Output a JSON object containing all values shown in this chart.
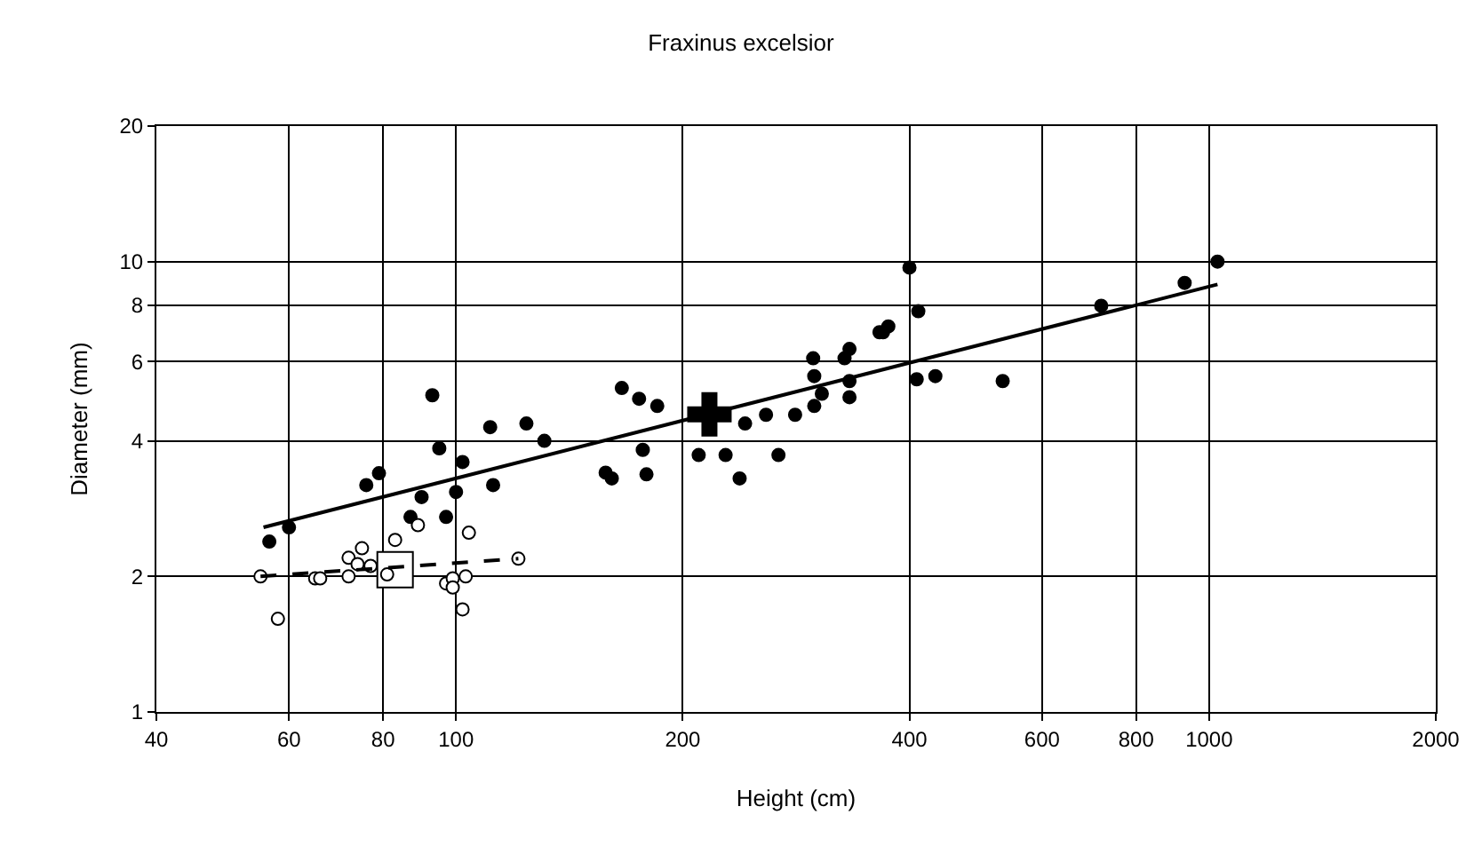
{
  "chart_data": {
    "type": "scatter",
    "title": "Fraxinus excelsior",
    "xlabel": "Height (cm)",
    "ylabel": "Diameter (mm)",
    "log": "xy",
    "grid": true,
    "legend": false,
    "xlim": [
      40,
      2000
    ],
    "xticks": [
      40,
      60,
      80,
      100,
      200,
      400,
      600,
      800,
      1000,
      2000
    ],
    "ylim": [
      1,
      20
    ],
    "yticks": [
      1,
      2,
      4,
      6,
      8,
      10,
      20
    ],
    "series": [
      {
        "marker": "cross",
        "color": "#000000",
        "x": [
          217
        ],
        "values": [
          4.58
        ]
      },
      {
        "marker": "square",
        "color": "#ffffff",
        "x": [
          83
        ],
        "values": [
          2.07
        ]
      },
      {
        "marker": "circle",
        "color": "#000000",
        "x": [
          93,
          111,
          124,
          131,
          95,
          102,
          112,
          79,
          76,
          90,
          100,
          87,
          97,
          60,
          56.5,
          166,
          175,
          185,
          177,
          158,
          161,
          179,
          210,
          228,
          238,
          242,
          258,
          268,
          282,
          298,
          299,
          306,
          299,
          328,
          333,
          333,
          333,
          365,
          400,
          411,
          369,
          375,
          409,
          433,
          532,
          719,
          928,
          1026
        ],
        "values": [
          5.05,
          4.29,
          4.37,
          4.0,
          3.85,
          3.59,
          3.19,
          3.39,
          3.19,
          3.0,
          3.08,
          2.71,
          2.71,
          2.57,
          2.39,
          5.24,
          4.96,
          4.78,
          3.82,
          3.4,
          3.3,
          3.37,
          3.72,
          3.72,
          3.3,
          4.37,
          4.57,
          3.72,
          4.57,
          6.1,
          5.57,
          5.09,
          4.78,
          6.1,
          6.4,
          5.43,
          5.0,
          6.97,
          9.7,
          7.76,
          6.97,
          7.18,
          5.48,
          5.57,
          5.43,
          7.98,
          8.97,
          10.0
        ]
      },
      {
        "marker": "circle",
        "color": "#ffffff",
        "x": [
          55,
          58,
          65,
          66,
          72,
          72,
          75,
          74,
          77,
          81,
          83,
          89,
          97,
          99,
          103,
          99,
          102,
          104,
          121
        ],
        "values": [
          2.0,
          1.61,
          1.98,
          1.98,
          2.0,
          2.2,
          2.31,
          2.13,
          2.11,
          2.02,
          2.41,
          2.6,
          1.93,
          1.98,
          2.0,
          1.89,
          1.69,
          2.5,
          2.19
        ]
      },
      {
        "type": "line",
        "line_style": "solid",
        "color": "#000000",
        "x": [
          55.5,
          1026
        ],
        "values": [
          2.57,
          8.9
        ]
      },
      {
        "type": "line",
        "line_style": "dashed",
        "color": "#000000",
        "x": [
          55,
          121
        ],
        "values": [
          2.0,
          2.19
        ]
      }
    ]
  }
}
